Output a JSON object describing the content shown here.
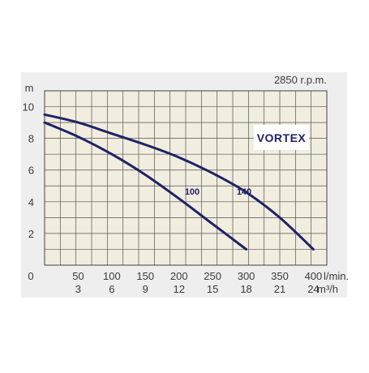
{
  "chart_data": {
    "type": "line",
    "title": "",
    "rpm_label": "2850 r.p.m.",
    "brand_label": "VORTEX",
    "ylabel": "m",
    "xlabel_primary": "l/min.",
    "xlabel_secondary": "m³/h",
    "origin_label": "0",
    "xlim": [
      0,
      420
    ],
    "ylim": [
      0,
      11
    ],
    "grid": true,
    "x_ticks": [
      {
        "value": 50,
        "label": "50",
        "label2": "3"
      },
      {
        "value": 100,
        "label": "100",
        "label2": "6"
      },
      {
        "value": 150,
        "label": "150",
        "label2": "9"
      },
      {
        "value": 200,
        "label": "200",
        "label2": "12"
      },
      {
        "value": 250,
        "label": "250",
        "label2": "15"
      },
      {
        "value": 300,
        "label": "300",
        "label2": "18"
      },
      {
        "value": 350,
        "label": "350",
        "label2": "21"
      },
      {
        "value": 400,
        "label": "400",
        "label2": "24"
      }
    ],
    "y_ticks": [
      {
        "value": 2,
        "label": "2"
      },
      {
        "value": 4,
        "label": "4"
      },
      {
        "value": 6,
        "label": "6"
      },
      {
        "value": 8,
        "label": "8"
      },
      {
        "value": 10,
        "label": "10"
      }
    ],
    "series": [
      {
        "name": "100",
        "color": "#1f2266",
        "x": [
          0,
          50,
          100,
          150,
          200,
          250,
          300
        ],
        "y": [
          9.0,
          8.1,
          7.0,
          5.7,
          4.2,
          2.6,
          1.0
        ]
      },
      {
        "name": "140",
        "color": "#1f2266",
        "x": [
          0,
          50,
          100,
          150,
          200,
          250,
          300,
          350,
          400
        ],
        "y": [
          9.5,
          9.0,
          8.3,
          7.6,
          6.8,
          5.8,
          4.6,
          3.0,
          1.0
        ]
      }
    ]
  },
  "colors": {
    "plot_background": "#f1eddf",
    "frame_background": "#eeeeee",
    "grid": "#555555",
    "curve": "#1f2266"
  }
}
